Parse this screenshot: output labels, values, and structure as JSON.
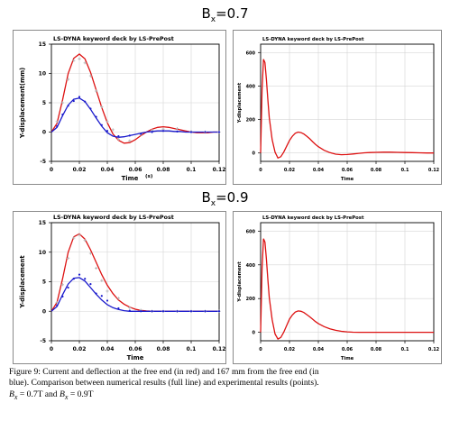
{
  "sections": [
    {
      "title_base": "B",
      "title_sub": "x",
      "title_rest": "=0.7"
    },
    {
      "title_base": "B",
      "title_sub": "x",
      "title_rest": "=0.9"
    }
  ],
  "colors": {
    "current": "#dd1111",
    "deflection": "#1a1acc",
    "grid": "#d6d6d6",
    "marker": "#b5b5b5"
  },
  "caption": {
    "line1": "Figure 9: Current and deflection at the free end (in red) and 167 mm from the free end (in",
    "line2": "blue). Comparison between numerical results (full line) and experimental results (points).",
    "line3_a": "B",
    "line3_a_sub": "x",
    "line3_b": " = 0.7T and ",
    "line3_c": "B",
    "line3_c_sub": "x",
    "line3_d": " = 0.9T"
  },
  "chart_data": [
    {
      "id": "deflection-bx07",
      "type": "line",
      "title": "LS-DYNA keyword deck by LS-PrePost",
      "xlabel": "Time",
      "xunit": "(s)",
      "ylabel": "Y-displacement",
      "yunit": "(mm)",
      "xlim": [
        0,
        0.12
      ],
      "ylim": [
        -5,
        15
      ],
      "xticks": [
        "0",
        "0.02",
        "0.04",
        "0.06",
        "0.08",
        "0.1",
        "0.12"
      ],
      "yticks": [
        "-5",
        "0",
        "5",
        "10",
        "15"
      ],
      "grid": true,
      "series": [
        {
          "kind": "line",
          "color": "red",
          "x": [
            0,
            0.004,
            0.008,
            0.012,
            0.016,
            0.02,
            0.024,
            0.028,
            0.032,
            0.036,
            0.04,
            0.044,
            0.048,
            0.052,
            0.056,
            0.06,
            0.064,
            0.068,
            0.072,
            0.076,
            0.08,
            0.084,
            0.088,
            0.092,
            0.096,
            0.1,
            0.104,
            0.108,
            0.112,
            0.116,
            0.12
          ],
          "y": [
            0,
            1.5,
            5.5,
            10,
            12.6,
            13.3,
            12.5,
            10.2,
            7.2,
            4.2,
            1.6,
            -0.3,
            -1.4,
            -1.9,
            -1.8,
            -1.3,
            -0.6,
            0,
            0.5,
            0.8,
            0.9,
            0.8,
            0.6,
            0.4,
            0.2,
            0,
            -0.1,
            -0.1,
            -0.1,
            0,
            0
          ]
        },
        {
          "kind": "line",
          "color": "blue",
          "x": [
            0,
            0.004,
            0.008,
            0.012,
            0.016,
            0.02,
            0.024,
            0.028,
            0.032,
            0.036,
            0.04,
            0.044,
            0.048,
            0.052,
            0.056,
            0.06,
            0.064,
            0.068,
            0.072,
            0.076,
            0.08,
            0.084,
            0.088,
            0.092,
            0.096,
            0.1,
            0.104,
            0.108,
            0.112,
            0.116,
            0.12
          ],
          "y": [
            0,
            0.8,
            2.8,
            4.6,
            5.6,
            5.8,
            5.2,
            3.9,
            2.4,
            1.0,
            -0.1,
            -0.7,
            -0.9,
            -0.8,
            -0.6,
            -0.4,
            -0.2,
            0,
            0.1,
            0.2,
            0.2,
            0.2,
            0.1,
            0.1,
            0,
            0,
            0,
            0,
            0,
            0,
            0
          ]
        },
        {
          "kind": "points",
          "color": "grey",
          "x": [
            0.004,
            0.008,
            0.012,
            0.016,
            0.02,
            0.024,
            0.028,
            0.032,
            0.036,
            0.04,
            0.044,
            0.048,
            0.056,
            0.064,
            0.072,
            0.08,
            0.09,
            0.1,
            0.11,
            0.12
          ],
          "y": [
            1.8,
            5,
            9,
            12.2,
            12.5,
            11.8,
            9.6,
            7,
            4.3,
            1.8,
            0.4,
            -1.2,
            -1.5,
            -0.4,
            0.3,
            0.5,
            0.6,
            0.1,
            0,
            0
          ]
        },
        {
          "kind": "points",
          "color": "blue",
          "x": [
            0.004,
            0.008,
            0.012,
            0.016,
            0.02,
            0.024,
            0.028,
            0.032,
            0.036,
            0.04,
            0.048,
            0.056,
            0.064,
            0.072,
            0.08,
            0.09,
            0.1,
            0.11,
            0.12
          ],
          "y": [
            1,
            3,
            4.5,
            5.3,
            6,
            5.2,
            4,
            2.6,
            1.2,
            0.2,
            -0.7,
            -0.6,
            -0.3,
            0,
            0.2,
            0.1,
            0,
            0,
            0
          ]
        }
      ]
    },
    {
      "id": "current-bx07",
      "type": "line",
      "title": "LS-DYNA keyword deck by LS-PrePost",
      "xlabel": "Time",
      "ylabel": "Y-displacement",
      "xlim": [
        0,
        0.12
      ],
      "ylim": [
        -50,
        650
      ],
      "xticks": [
        "0",
        "0.02",
        "0.04",
        "0.06",
        "0.08",
        "0.1",
        "0.12"
      ],
      "yticks": [
        "0",
        "200",
        "400",
        "600"
      ],
      "grid": true,
      "series": [
        {
          "kind": "line",
          "color": "red",
          "x": [
            0,
            0.001,
            0.002,
            0.003,
            0.004,
            0.005,
            0.006,
            0.008,
            0.01,
            0.012,
            0.014,
            0.016,
            0.018,
            0.02,
            0.022,
            0.024,
            0.026,
            0.028,
            0.03,
            0.032,
            0.034,
            0.036,
            0.038,
            0.04,
            0.044,
            0.048,
            0.052,
            0.056,
            0.06,
            0.064,
            0.068,
            0.072,
            0.076,
            0.08,
            0.085,
            0.09,
            0.095,
            0.1,
            0.105,
            0.11,
            0.115,
            0.12
          ],
          "y": [
            0,
            380,
            560,
            540,
            440,
            320,
            210,
            80,
            5,
            -30,
            -22,
            5,
            40,
            75,
            100,
            118,
            125,
            122,
            113,
            100,
            85,
            68,
            52,
            38,
            16,
            2,
            -7,
            -10,
            -9,
            -6,
            -2,
            1,
            3,
            4,
            5,
            5,
            4,
            3,
            2,
            1,
            0,
            0
          ]
        }
      ]
    },
    {
      "id": "deflection-bx09",
      "type": "line",
      "title": "LS-DYNA keyword deck by LS-PrePost",
      "xlabel": "Time",
      "ylabel": "Y-displacement",
      "xlim": [
        0,
        0.12
      ],
      "ylim": [
        -5,
        15
      ],
      "xticks": [
        "0",
        "0.02",
        "0.04",
        "0.06",
        "0.08",
        "0.1",
        "0.12"
      ],
      "yticks": [
        "-5",
        "0",
        "5",
        "10",
        "15"
      ],
      "grid": true,
      "series": [
        {
          "kind": "line",
          "color": "red",
          "x": [
            0,
            0.004,
            0.008,
            0.012,
            0.016,
            0.02,
            0.024,
            0.028,
            0.032,
            0.036,
            0.04,
            0.044,
            0.048,
            0.052,
            0.056,
            0.06,
            0.064,
            0.068,
            0.072,
            0.076,
            0.08,
            0.085,
            0.09,
            0.1,
            0.11,
            0.12
          ],
          "y": [
            0,
            1.5,
            5.5,
            10,
            12.6,
            13.1,
            12.2,
            10.4,
            8.3,
            6.2,
            4.4,
            3.0,
            1.9,
            1.2,
            0.7,
            0.35,
            0.15,
            0.05,
            0,
            0,
            0,
            0,
            0,
            0,
            0,
            0
          ]
        },
        {
          "kind": "line",
          "color": "blue",
          "x": [
            0,
            0.004,
            0.008,
            0.012,
            0.016,
            0.02,
            0.024,
            0.028,
            0.032,
            0.036,
            0.04,
            0.044,
            0.048,
            0.052,
            0.056,
            0.06,
            0.064,
            0.068,
            0.072,
            0.076,
            0.08,
            0.085,
            0.09,
            0.1,
            0.11,
            0.12
          ],
          "y": [
            0,
            0.8,
            2.8,
            4.6,
            5.6,
            5.7,
            5.1,
            4.0,
            2.9,
            1.9,
            1.1,
            0.6,
            0.3,
            0.1,
            0,
            0,
            0,
            0,
            0,
            0,
            0,
            0,
            0,
            0,
            0,
            0
          ]
        },
        {
          "kind": "points",
          "color": "grey",
          "x": [
            0.004,
            0.008,
            0.012,
            0.016,
            0.02,
            0.024,
            0.028,
            0.032,
            0.036,
            0.04,
            0.048,
            0.056,
            0.064,
            0.072,
            0.08,
            0.09,
            0.1,
            0.11,
            0.12
          ],
          "y": [
            1.5,
            4.5,
            9,
            12.4,
            12.9,
            12,
            9.8,
            7.3,
            5.2,
            3.4,
            2.2,
            0.6,
            0.2,
            0,
            0,
            0,
            0,
            0,
            0
          ]
        },
        {
          "kind": "points",
          "color": "blue",
          "x": [
            0.004,
            0.008,
            0.012,
            0.016,
            0.02,
            0.024,
            0.028,
            0.032,
            0.036,
            0.04,
            0.048,
            0.056,
            0.064,
            0.072,
            0.08,
            0.09,
            0.1,
            0.11,
            0.12
          ],
          "y": [
            1,
            2.5,
            4,
            5.5,
            6.2,
            5.5,
            4.6,
            3,
            2.6,
            1.8,
            0.5,
            0.1,
            0,
            0,
            0,
            0,
            0,
            0,
            0
          ]
        }
      ]
    },
    {
      "id": "current-bx09",
      "type": "line",
      "title": "LS-DYNA keyword deck by LS-PrePost",
      "xlabel": "Time",
      "ylabel": "Y-displacement",
      "xlim": [
        0,
        0.12
      ],
      "ylim": [
        -50,
        650
      ],
      "xticks": [
        "0",
        "0.02",
        "0.04",
        "0.06",
        "0.08",
        "0.1",
        "0.12"
      ],
      "yticks": [
        "0",
        "200",
        "400",
        "600"
      ],
      "grid": true,
      "series": [
        {
          "kind": "line",
          "color": "red",
          "x": [
            0,
            0.001,
            0.002,
            0.003,
            0.004,
            0.005,
            0.006,
            0.008,
            0.01,
            0.012,
            0.014,
            0.016,
            0.018,
            0.02,
            0.022,
            0.024,
            0.026,
            0.028,
            0.03,
            0.032,
            0.034,
            0.036,
            0.038,
            0.04,
            0.044,
            0.048,
            0.052,
            0.056,
            0.06,
            0.064,
            0.068,
            0.072,
            0.076,
            0.08,
            0.085,
            0.09,
            0.095,
            0.1,
            0.105,
            0.11,
            0.115,
            0.12
          ],
          "y": [
            0,
            380,
            555,
            535,
            435,
            315,
            205,
            75,
            -10,
            -40,
            -30,
            0,
            40,
            78,
            103,
            120,
            127,
            125,
            117,
            105,
            92,
            78,
            64,
            52,
            34,
            21,
            12,
            6,
            3,
            1,
            0,
            0,
            0,
            0,
            0,
            0,
            0,
            0,
            0,
            0,
            0,
            0
          ]
        }
      ]
    }
  ]
}
